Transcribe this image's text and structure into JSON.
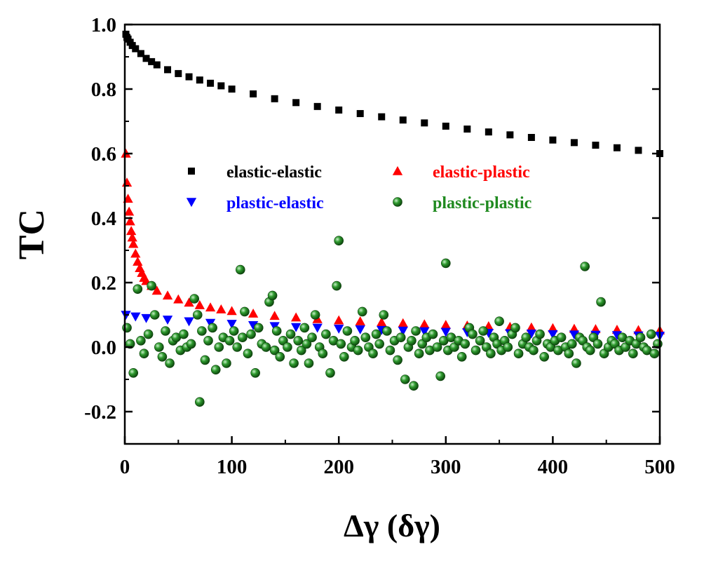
{
  "chart_data": {
    "type": "scatter",
    "xlabel": "Δγ (δγ)",
    "ylabel": "TC",
    "xlim": [
      0,
      500
    ],
    "ylim": [
      -0.3,
      1.0
    ],
    "xticks": [
      "0",
      "100",
      "200",
      "300",
      "400",
      "500"
    ],
    "yticks": [
      "-0.2",
      "0.0",
      "0.2",
      "0.4",
      "0.6",
      "0.8",
      "1.0"
    ],
    "grid": false,
    "legend_position": "center",
    "series": [
      {
        "name": "elastic-elastic",
        "marker": "square",
        "color": "#000000",
        "x": [
          1,
          2,
          3,
          5,
          7,
          10,
          15,
          20,
          25,
          30,
          40,
          50,
          60,
          70,
          80,
          90,
          100,
          120,
          140,
          160,
          180,
          200,
          220,
          240,
          260,
          280,
          300,
          320,
          340,
          360,
          380,
          400,
          420,
          440,
          460,
          480,
          500
        ],
        "y": [
          0.97,
          0.96,
          0.955,
          0.945,
          0.935,
          0.925,
          0.91,
          0.895,
          0.885,
          0.875,
          0.86,
          0.848,
          0.838,
          0.828,
          0.818,
          0.81,
          0.8,
          0.785,
          0.77,
          0.758,
          0.746,
          0.735,
          0.724,
          0.714,
          0.704,
          0.695,
          0.685,
          0.676,
          0.667,
          0.658,
          0.65,
          0.642,
          0.634,
          0.626,
          0.618,
          0.61,
          0.6
        ]
      },
      {
        "name": "elastic-plastic",
        "marker": "triangle-up",
        "color": "#ff0000",
        "x": [
          1,
          2,
          3,
          4,
          5,
          6,
          7,
          8,
          10,
          12,
          14,
          16,
          18,
          20,
          25,
          30,
          40,
          50,
          60,
          70,
          80,
          90,
          100,
          120,
          140,
          160,
          180,
          200,
          220,
          240,
          260,
          280,
          300,
          320,
          340,
          360,
          380,
          400,
          420,
          440,
          460,
          480,
          500
        ],
        "y": [
          0.6,
          0.51,
          0.46,
          0.42,
          0.39,
          0.36,
          0.34,
          0.32,
          0.29,
          0.265,
          0.245,
          0.23,
          0.215,
          0.205,
          0.19,
          0.175,
          0.16,
          0.148,
          0.138,
          0.13,
          0.123,
          0.117,
          0.112,
          0.104,
          0.097,
          0.092,
          0.087,
          0.083,
          0.08,
          0.077,
          0.074,
          0.071,
          0.069,
          0.067,
          0.065,
          0.063,
          0.061,
          0.059,
          0.057,
          0.056,
          0.054,
          0.053,
          0.052
        ]
      },
      {
        "name": "plastic-elastic",
        "marker": "triangle-down",
        "color": "#0000ff",
        "x": [
          1,
          10,
          20,
          40,
          60,
          80,
          100,
          120,
          140,
          160,
          180,
          200,
          220,
          240,
          260,
          280,
          300,
          320,
          340,
          360,
          380,
          400,
          420,
          440,
          460,
          480,
          500
        ],
        "y": [
          0.1,
          0.095,
          0.09,
          0.085,
          0.08,
          0.075,
          0.072,
          0.068,
          0.065,
          0.062,
          0.06,
          0.057,
          0.055,
          0.053,
          0.051,
          0.049,
          0.047,
          0.046,
          0.044,
          0.043,
          0.042,
          0.04,
          0.039,
          0.038,
          0.037,
          0.036,
          0.035
        ]
      },
      {
        "name": "plastic-plastic",
        "marker": "sphere",
        "color": "#1f8a1f",
        "x": [
          2,
          5,
          8,
          12,
          15,
          18,
          22,
          25,
          28,
          32,
          35,
          38,
          42,
          45,
          48,
          52,
          55,
          58,
          62,
          65,
          68,
          70,
          72,
          75,
          78,
          82,
          85,
          88,
          92,
          95,
          98,
          102,
          105,
          108,
          110,
          112,
          115,
          118,
          122,
          125,
          128,
          132,
          135,
          138,
          140,
          142,
          145,
          148,
          152,
          155,
          158,
          162,
          165,
          168,
          170,
          172,
          175,
          178,
          182,
          185,
          188,
          192,
          195,
          198,
          200,
          202,
          205,
          208,
          212,
          215,
          218,
          222,
          225,
          228,
          232,
          235,
          238,
          242,
          245,
          248,
          252,
          255,
          258,
          262,
          265,
          268,
          270,
          272,
          275,
          278,
          282,
          285,
          288,
          292,
          295,
          298,
          300,
          302,
          305,
          308,
          312,
          315,
          318,
          322,
          325,
          328,
          332,
          335,
          338,
          342,
          345,
          348,
          350,
          352,
          355,
          358,
          362,
          365,
          368,
          372,
          375,
          378,
          382,
          385,
          388,
          392,
          395,
          398,
          402,
          405,
          408,
          412,
          415,
          418,
          422,
          425,
          428,
          430,
          432,
          435,
          438,
          442,
          445,
          448,
          452,
          455,
          458,
          462,
          465,
          468,
          472,
          475,
          478,
          482,
          485,
          488,
          492,
          495,
          498
        ],
        "y": [
          0.06,
          0.01,
          -0.08,
          0.18,
          0.02,
          -0.02,
          0.04,
          0.19,
          0.1,
          0.0,
          -0.03,
          0.05,
          -0.05,
          0.02,
          0.03,
          -0.01,
          0.04,
          0.0,
          0.01,
          0.15,
          0.1,
          -0.17,
          0.05,
          -0.04,
          0.02,
          0.06,
          -0.07,
          0.0,
          0.03,
          -0.05,
          0.02,
          0.05,
          0.0,
          0.24,
          0.03,
          0.11,
          -0.02,
          0.04,
          -0.08,
          0.06,
          0.01,
          0.0,
          0.14,
          0.16,
          -0.01,
          0.05,
          -0.03,
          0.02,
          0.0,
          0.04,
          -0.05,
          0.02,
          -0.01,
          0.06,
          0.01,
          -0.05,
          0.03,
          0.1,
          0.0,
          -0.02,
          0.04,
          -0.08,
          0.02,
          0.19,
          0.33,
          0.01,
          -0.03,
          0.05,
          0.0,
          0.02,
          -0.01,
          0.11,
          0.03,
          0.0,
          -0.02,
          0.04,
          0.01,
          0.1,
          0.05,
          -0.01,
          0.02,
          -0.04,
          0.03,
          -0.1,
          0.0,
          0.02,
          -0.12,
          0.05,
          -0.02,
          0.01,
          0.03,
          -0.01,
          0.04,
          0.0,
          -0.09,
          0.02,
          0.26,
          -0.01,
          0.03,
          0.0,
          0.02,
          -0.03,
          0.01,
          0.06,
          0.04,
          -0.01,
          0.02,
          0.05,
          0.0,
          -0.02,
          0.03,
          0.01,
          0.08,
          -0.01,
          0.02,
          0.0,
          0.04,
          0.06,
          -0.02,
          0.01,
          0.03,
          0.0,
          -0.01,
          0.02,
          0.04,
          -0.03,
          0.01,
          0.0,
          0.02,
          -0.01,
          0.03,
          0.0,
          -0.02,
          0.01,
          -0.05,
          0.03,
          0.02,
          0.25,
          0.0,
          -0.01,
          0.03,
          0.01,
          0.14,
          -0.02,
          0.0,
          0.02,
          0.01,
          -0.01,
          0.03,
          0.0,
          0.02,
          -0.02,
          0.01,
          0.03,
          0.0,
          -0.01,
          0.04,
          -0.02,
          0.01
        ]
      }
    ]
  }
}
